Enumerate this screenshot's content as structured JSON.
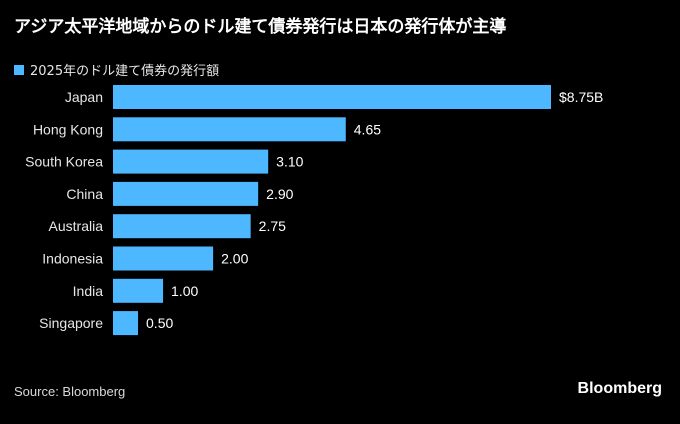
{
  "title": "アジア太平洋地域からのドル建て債券発行は日本の発行体が主導",
  "legend": {
    "label": "2025年のドル建て債券の発行額"
  },
  "colors": {
    "bar": "#4db8ff",
    "background": "#000000",
    "text": "#ffffff"
  },
  "chart_data": {
    "type": "bar",
    "orientation": "horizontal",
    "title": "アジア太平洋地域からのドル建て債券発行は日本の発行体が主導",
    "categories": [
      "Japan",
      "Hong Kong",
      "South Korea",
      "China",
      "Australia",
      "Indonesia",
      "India",
      "Singapore"
    ],
    "series": [
      {
        "name": "2025年のドル建て債券の発行額",
        "values": [
          8.75,
          4.65,
          3.1,
          2.9,
          2.75,
          2.0,
          1.0,
          0.5
        ]
      }
    ],
    "value_labels": [
      "$8.75B",
      "4.65",
      "3.10",
      "2.90",
      "2.75",
      "2.00",
      "1.00",
      "0.50"
    ],
    "xlim": [
      0,
      8.75
    ],
    "grid": false,
    "legend_position": "top-left"
  },
  "footer": {
    "source": "Source: Bloomberg",
    "brand": "Bloomberg"
  }
}
